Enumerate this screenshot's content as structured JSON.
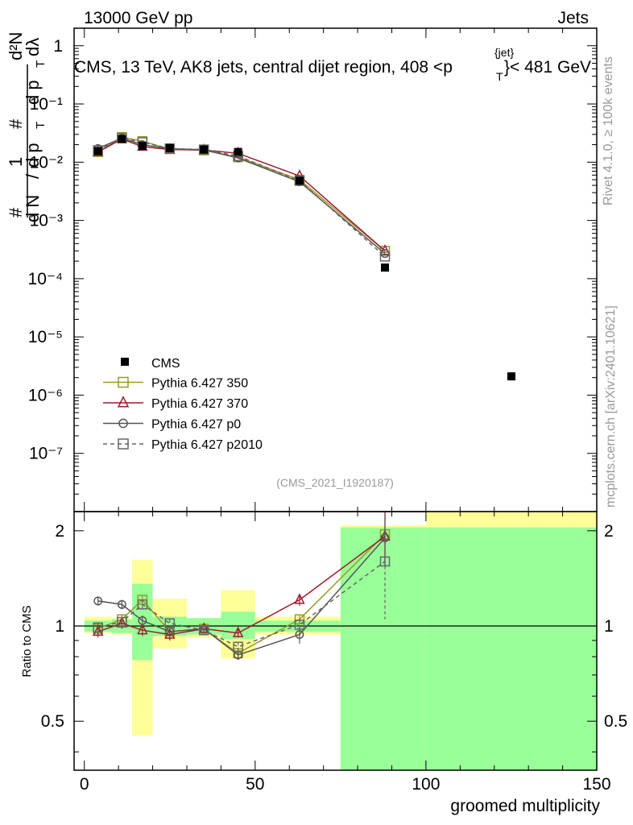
{
  "header": {
    "left": "13000 GeV pp",
    "right": "Jets"
  },
  "side_labels": {
    "rivet": "Rivet 4.1.0, ≥ 100k events",
    "mcplots": "mcplots.cern.ch [arXiv:2401.10621]"
  },
  "chart_data": {
    "type": "line",
    "title": "CMS, 13 TeV, AK8 jets, central dijet region, 408 < p_T^{jet} < 481 GeV",
    "title_parts": {
      "main": "CMS, 13 TeV, AK8 jets, central dijet region, 408 <p",
      "sub": "T",
      "sup": "{jet}",
      "tail": "}< 481 GeV"
    },
    "analysis_id": "(CMS_2021_I1920187)",
    "xlabel": "groomed multiplicity",
    "ylabel": "1/dN/dp_T # d^2N/(dp_T dλ)",
    "ylabel_parts": {
      "hash": "#",
      "one": "1",
      "dn": "d N",
      "slash": "/",
      "dpt": "d p",
      "dpt_sub": "T",
      "d2n": "d²N",
      "den": "d p",
      "den_sub": "T",
      "dl": "dλ"
    },
    "ratio_ylabel": "Ratio to CMS",
    "xlim": [
      -3,
      150
    ],
    "main_ylim": [
      1e-08,
      2
    ],
    "main_ytick_labels": [
      "1",
      "10⁻¹",
      "10⁻²",
      "10⁻³",
      "10⁻⁴",
      "10⁻⁵",
      "10⁻⁶",
      "10⁻⁷"
    ],
    "ratio_ylim": [
      0.35,
      2.3
    ],
    "ratio_ytick_labels": [
      "0.5",
      "1",
      "2"
    ],
    "xtick_labels": [
      "0",
      "50",
      "100",
      "150"
    ],
    "data": {
      "name": "CMS",
      "x": [
        4,
        11,
        17,
        25,
        35,
        45,
        63,
        88,
        125
      ],
      "xlo": [
        0,
        8,
        14,
        20,
        30,
        40,
        50,
        75,
        100
      ],
      "xhi": [
        8,
        14,
        20,
        30,
        40,
        50,
        75,
        100,
        150
      ],
      "y": [
        0.0155,
        0.025,
        0.019,
        0.0175,
        0.0165,
        0.015,
        0.0048,
        0.000155,
        2.1e-06
      ],
      "stat_band_lo": [
        0.96,
        0.95,
        0.78,
        0.93,
        0.94,
        0.91,
        0.96,
        0.31,
        0.3
      ],
      "stat_band_hi": [
        1.04,
        1.05,
        1.36,
        1.07,
        1.06,
        1.11,
        1.04,
        2.05,
        2.05
      ],
      "total_band_lo": [
        0.95,
        0.94,
        0.45,
        0.85,
        0.92,
        0.79,
        0.94,
        0.26,
        0.3
      ],
      "total_band_hi": [
        1.07,
        1.06,
        1.62,
        1.22,
        1.06,
        1.3,
        1.07,
        2.08,
        2.3
      ]
    },
    "series": [
      {
        "name": "Pythia 6.427 350",
        "color": "#9a9a20",
        "marker": "square-open",
        "dashed": false,
        "x": [
          4,
          11,
          17,
          25,
          35,
          45,
          63,
          88
        ],
        "y": [
          0.015,
          0.027,
          0.023,
          0.0168,
          0.016,
          0.0122,
          0.005,
          0.0003
        ],
        "ratio": [
          0.98,
          1.05,
          1.21,
          0.96,
          0.98,
          0.82,
          1.05,
          1.95
        ],
        "ratio_err": [
          0.03,
          0.03,
          0.04,
          0.03,
          0.03,
          0.03,
          0.03,
          0.35
        ]
      },
      {
        "name": "Pythia 6.427 370",
        "color": "#9b1c2e",
        "marker": "triangle-open",
        "dashed": false,
        "x": [
          4,
          11,
          17,
          25,
          35,
          45,
          63,
          88
        ],
        "y": [
          0.015,
          0.025,
          0.0185,
          0.0165,
          0.0162,
          0.0142,
          0.0058,
          0.0003
        ],
        "ratio": [
          0.96,
          1.02,
          0.97,
          0.94,
          0.98,
          0.95,
          1.21,
          1.92
        ],
        "ratio_err": [
          0.04,
          0.04,
          0.04,
          0.04,
          0.03,
          0.03,
          0.05,
          0.38
        ]
      },
      {
        "name": "Pythia 6.427 p0",
        "color": "#555555",
        "marker": "circle-open",
        "dashed": false,
        "x": [
          4,
          11,
          17,
          25,
          35,
          45,
          63,
          88
        ],
        "y": [
          0.0172,
          0.026,
          0.02,
          0.017,
          0.0163,
          0.0118,
          0.0046,
          0.00027
        ],
        "ratio": [
          1.2,
          1.17,
          1.04,
          0.96,
          0.98,
          0.81,
          0.94,
          1.9
        ],
        "ratio_err": [
          0.04,
          0.04,
          0.04,
          0.03,
          0.03,
          0.03,
          0.06,
          0.36
        ]
      },
      {
        "name": "Pythia 6.427 p2010",
        "color": "#666666",
        "marker": "square-open",
        "dashed": true,
        "x": [
          4,
          11,
          17,
          25,
          35,
          45,
          63,
          88
        ],
        "y": [
          0.016,
          0.026,
          0.022,
          0.0172,
          0.0165,
          0.0128,
          0.0048,
          0.00024
        ],
        "ratio": [
          0.99,
          1.03,
          1.17,
          1.02,
          0.97,
          0.86,
          1.01,
          1.6
        ],
        "ratio_err": [
          0.03,
          0.03,
          0.04,
          0.03,
          0.03,
          0.03,
          0.04,
          0.55
        ]
      }
    ],
    "colors": {
      "stat_band": "#99ff99",
      "total_band": "#ffff99",
      "data_marker": "#000000"
    }
  }
}
